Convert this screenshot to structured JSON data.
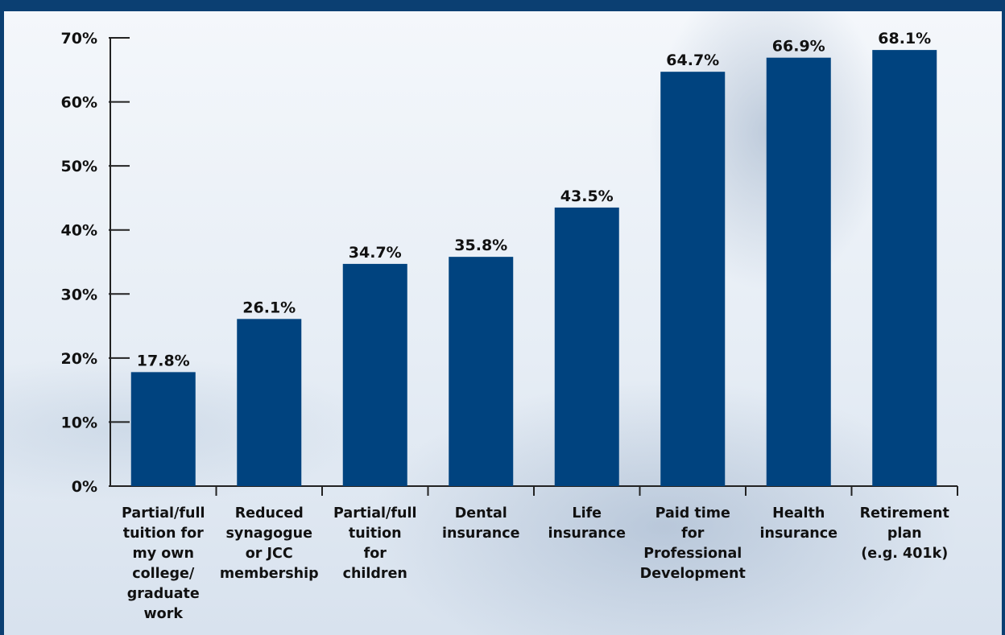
{
  "chart_data": {
    "type": "bar",
    "categories": [
      [
        "Partial/full",
        "tuition for",
        "my own",
        "college/",
        "graduate",
        "work"
      ],
      [
        "Reduced",
        "synagogue",
        "or JCC",
        "membership"
      ],
      [
        "Partial/full",
        "tuition",
        "for",
        "children"
      ],
      [
        "Dental",
        "insurance"
      ],
      [
        "Life",
        "insurance"
      ],
      [
        "Paid time",
        "for",
        "Professional",
        "Development"
      ],
      [
        "Health",
        "insurance"
      ],
      [
        "Retirement",
        "plan",
        "(e.g. 401k)"
      ]
    ],
    "values": [
      17.8,
      26.1,
      34.7,
      35.8,
      43.5,
      64.7,
      66.9,
      68.1
    ],
    "value_labels": [
      "17.8%",
      "26.1%",
      "34.7%",
      "35.8%",
      "43.5%",
      "64.7%",
      "66.9%",
      "68.1%"
    ],
    "y_ticks": [
      0,
      10,
      20,
      30,
      40,
      50,
      60,
      70
    ],
    "y_tick_labels": [
      "0%",
      "10%",
      "20%",
      "30%",
      "40%",
      "50%",
      "60%",
      "70%"
    ],
    "ylim": [
      0,
      70
    ],
    "grid": false,
    "title": "",
    "xlabel": "",
    "ylabel": "",
    "bar_color": "#00437f",
    "frame_color": "#0b3f72"
  }
}
